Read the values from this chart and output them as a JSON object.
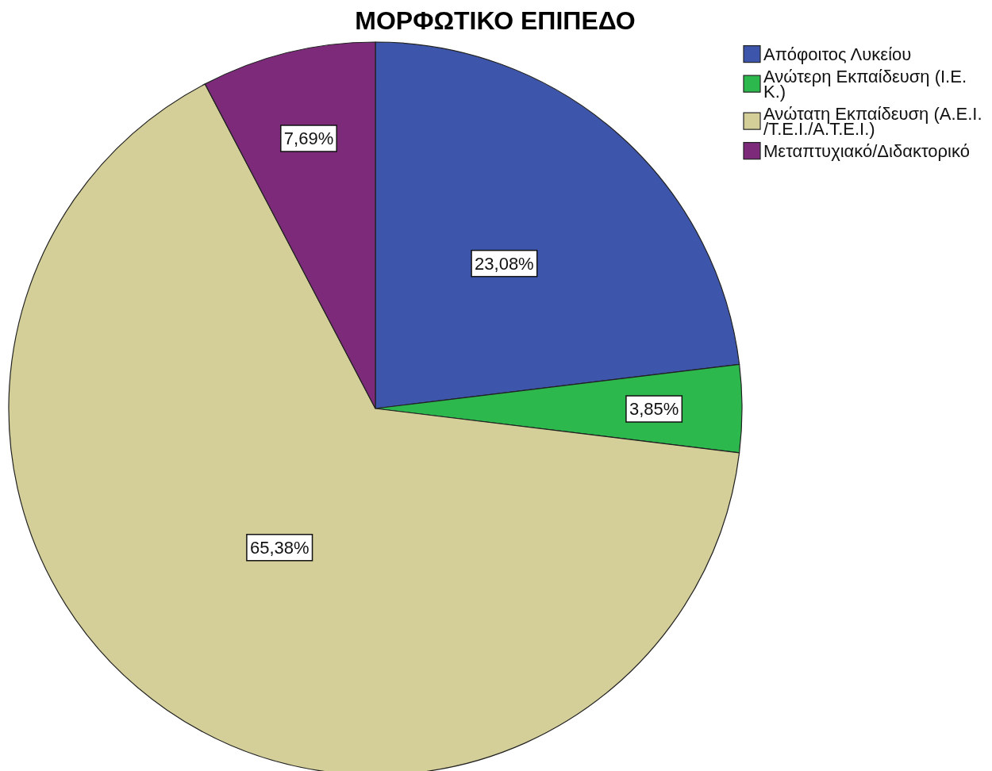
{
  "chart_data": {
    "type": "pie",
    "title": "ΜΟΡΦΩΤΙΚΟ ΕΠΙΠΕΔΟ",
    "categories": [
      "Απόφοιτος Λυκείου",
      "Ανώτερη Εκπαίδευση (Ι.Ε.Κ.)",
      "Ανώτατη Εκπαίδευση (Α.Ε.Ι./Τ.Ε.Ι./Α.Τ.Ε.Ι.)",
      "Μεταπτυχιακό/Διδακτορικό"
    ],
    "values": [
      23.08,
      3.85,
      65.38,
      7.69
    ],
    "colors": [
      "#3d56ab",
      "#2cb84c",
      "#d4cf98",
      "#7d2a7a"
    ],
    "value_labels": [
      "23,08%",
      "3,85%",
      "65,38%",
      "7,69%"
    ],
    "legend": "top right"
  }
}
